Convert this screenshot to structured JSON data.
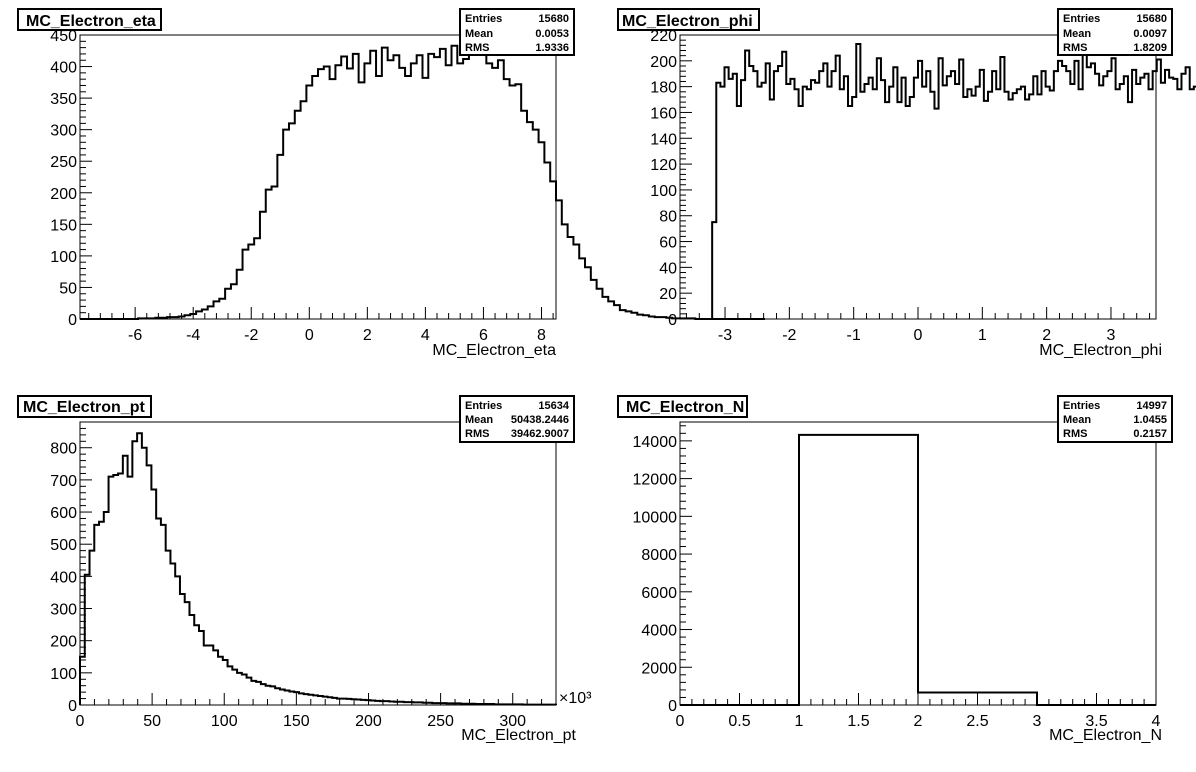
{
  "chart_data": [
    {
      "type": "bar",
      "title": "MC_Electron_eta",
      "xlabel": "MC_Electron_eta",
      "ylabel": "",
      "xlim": [
        -7.9,
        8.5
      ],
      "ylim": [
        0,
        450
      ],
      "xticks": [
        -6,
        -4,
        -2,
        0,
        2,
        4,
        6,
        8
      ],
      "xtick_labels": [
        "-6",
        "-4",
        "-2",
        "0",
        "2",
        "4",
        "6",
        "8"
      ],
      "yticks": [
        0,
        50,
        100,
        150,
        200,
        250,
        300,
        350,
        400,
        450
      ],
      "ytick_labels": [
        "0",
        "50",
        "100",
        "150",
        "200",
        "250",
        "300",
        "350",
        "400",
        "450"
      ],
      "xmul": "",
      "stats": [
        {
          "name": "Entries",
          "value": "15680"
        },
        {
          "name": "Mean",
          "value": "0.0053"
        },
        {
          "name": "RMS",
          "value": "1.9336"
        }
      ],
      "bin_start": -7.9,
      "bin_width": 0.2,
      "values": [
        0,
        0,
        0,
        0,
        0,
        0,
        0,
        0,
        0,
        0,
        1,
        1,
        1,
        2,
        2,
        3,
        3,
        4,
        6,
        8,
        12,
        15,
        20,
        28,
        32,
        48,
        55,
        78,
        110,
        118,
        128,
        170,
        205,
        210,
        260,
        300,
        310,
        330,
        345,
        370,
        385,
        396,
        400,
        380,
        402,
        416,
        397,
        420,
        375,
        405,
        425,
        385,
        430,
        410,
        418,
        398,
        385,
        405,
        418,
        382,
        420,
        415,
        428,
        402,
        433,
        405,
        412,
        420,
        438,
        425,
        405,
        398,
        410,
        380,
        370,
        372,
        330,
        312,
        300,
        280,
        248,
        218,
        188,
        150,
        130,
        118,
        96,
        82,
        62,
        48,
        35,
        28,
        22,
        14,
        12,
        10,
        7,
        6,
        4,
        3,
        3,
        2,
        1,
        1,
        1,
        1,
        0,
        0,
        0,
        0,
        0,
        0,
        0,
        0,
        0,
        0,
        0,
        0
      ]
    },
    {
      "type": "bar",
      "title": "MC_Electron_phi",
      "xlabel": "MC_Electron_phi",
      "ylabel": "",
      "xlim": [
        -3.7,
        3.7
      ],
      "ylim": [
        0,
        220
      ],
      "xticks": [
        -3,
        -2,
        -1,
        0,
        1,
        2,
        3
      ],
      "xtick_labels": [
        "-3",
        "-2",
        "-1",
        "0",
        "1",
        "2",
        "3"
      ],
      "yticks": [
        0,
        20,
        40,
        60,
        80,
        100,
        120,
        140,
        160,
        180,
        200,
        220
      ],
      "ytick_labels": [
        "0",
        "20",
        "40",
        "60",
        "80",
        "100",
        "120",
        "140",
        "160",
        "180",
        "200",
        "220"
      ],
      "xmul": "",
      "stats": [
        {
          "name": "Entries",
          "value": "15680"
        },
        {
          "name": "Mean",
          "value": "0.0097"
        },
        {
          "name": "RMS",
          "value": "1.8209"
        }
      ],
      "bin_start": -3.2,
      "bin_width": 0.064,
      "values": [
        75,
        183,
        180,
        195,
        186,
        190,
        165,
        185,
        208,
        196,
        192,
        180,
        183,
        198,
        170,
        192,
        196,
        207,
        182,
        186,
        178,
        165,
        180,
        178,
        185,
        183,
        192,
        198,
        180,
        192,
        204,
        178,
        188,
        165,
        172,
        213,
        176,
        182,
        187,
        178,
        202,
        185,
        168,
        180,
        195,
        168,
        187,
        165,
        172,
        187,
        200,
        180,
        192,
        176,
        163,
        202,
        181,
        188,
        192,
        182,
        201,
        172,
        178,
        173,
        180,
        193,
        169,
        176,
        192,
        178,
        203,
        176,
        170,
        175,
        178,
        180,
        170,
        174,
        188,
        174,
        192,
        180,
        177,
        192,
        200,
        196,
        192,
        182,
        200,
        178,
        205,
        195,
        198,
        190,
        181,
        188,
        192,
        202,
        178,
        182,
        188,
        168,
        193,
        182,
        187,
        190,
        178,
        192,
        201,
        183,
        193,
        187,
        186,
        178,
        190,
        195,
        178,
        180,
        162,
        217,
        150,
        143,
        168,
        192,
        187,
        190,
        193,
        190,
        192,
        180,
        178,
        195,
        184,
        195,
        192,
        190,
        206,
        196,
        180,
        192,
        200,
        185,
        175,
        190,
        186,
        172,
        180,
        180,
        198,
        190,
        182,
        186,
        200,
        182,
        178,
        195,
        188,
        196,
        195,
        183,
        180,
        193,
        182,
        195,
        197,
        92
      ]
    },
    {
      "type": "bar",
      "title": "MC_Electron_pt",
      "xlabel": "MC_Electron_pt",
      "ylabel": "",
      "xlim": [
        0,
        330
      ],
      "ylim": [
        0,
        880
      ],
      "xticks": [
        0,
        50,
        100,
        150,
        200,
        250,
        300
      ],
      "xtick_labels": [
        "0",
        "50",
        "100",
        "150",
        "200",
        "250",
        "300"
      ],
      "yticks": [
        0,
        100,
        200,
        300,
        400,
        500,
        600,
        700,
        800
      ],
      "ytick_labels": [
        "0",
        "100",
        "200",
        "300",
        "400",
        "500",
        "600",
        "700",
        "800"
      ],
      "xmul": "×10³",
      "stats": [
        {
          "name": "Entries",
          "value": "15634"
        },
        {
          "name": "Mean",
          "value": "50438.2446"
        },
        {
          "name": "RMS",
          "value": "39462.9007"
        }
      ],
      "bin_start": 0,
      "bin_width": 3.3,
      "values": [
        150,
        405,
        480,
        560,
        570,
        600,
        710,
        715,
        720,
        775,
        710,
        820,
        845,
        800,
        745,
        670,
        580,
        560,
        480,
        440,
        400,
        345,
        320,
        280,
        248,
        230,
        185,
        185,
        170,
        150,
        140,
        120,
        110,
        100,
        95,
        85,
        75,
        72,
        65,
        60,
        58,
        52,
        48,
        45,
        42,
        40,
        36,
        34,
        32,
        30,
        28,
        26,
        24,
        22,
        20,
        20,
        19,
        18,
        17,
        16,
        15,
        14,
        13,
        12,
        12,
        11,
        10,
        10,
        9,
        9,
        8,
        8,
        7,
        7,
        6,
        6,
        6,
        5,
        5,
        5,
        4,
        4,
        4,
        3,
        3,
        3,
        3,
        2,
        2,
        2,
        2,
        2,
        2,
        1,
        1,
        1,
        1,
        1,
        1,
        1
      ]
    },
    {
      "type": "bar",
      "title": "MC_Electron_N",
      "xlabel": "MC_Electron_N",
      "ylabel": "",
      "xlim": [
        0,
        4
      ],
      "ylim": [
        0,
        15000
      ],
      "xticks": [
        0,
        0.5,
        1,
        1.5,
        2,
        2.5,
        3,
        3.5,
        4
      ],
      "xtick_labels": [
        "0",
        "0.5",
        "1",
        "1.5",
        "2",
        "2.5",
        "3",
        "3.5",
        "4"
      ],
      "yticks": [
        0,
        2000,
        4000,
        6000,
        8000,
        10000,
        12000,
        14000
      ],
      "ytick_labels": [
        "0",
        "2000",
        "4000",
        "6000",
        "8000",
        "10000",
        "12000",
        "14000"
      ],
      "xmul": "",
      "stats": [
        {
          "name": "Entries",
          "value": "14997"
        },
        {
          "name": "Mean",
          "value": "1.0455"
        },
        {
          "name": "RMS",
          "value": "0.2157"
        }
      ],
      "bin_start": 0,
      "bin_width": 1,
      "values": [
        0,
        14320,
        660,
        0
      ]
    }
  ]
}
